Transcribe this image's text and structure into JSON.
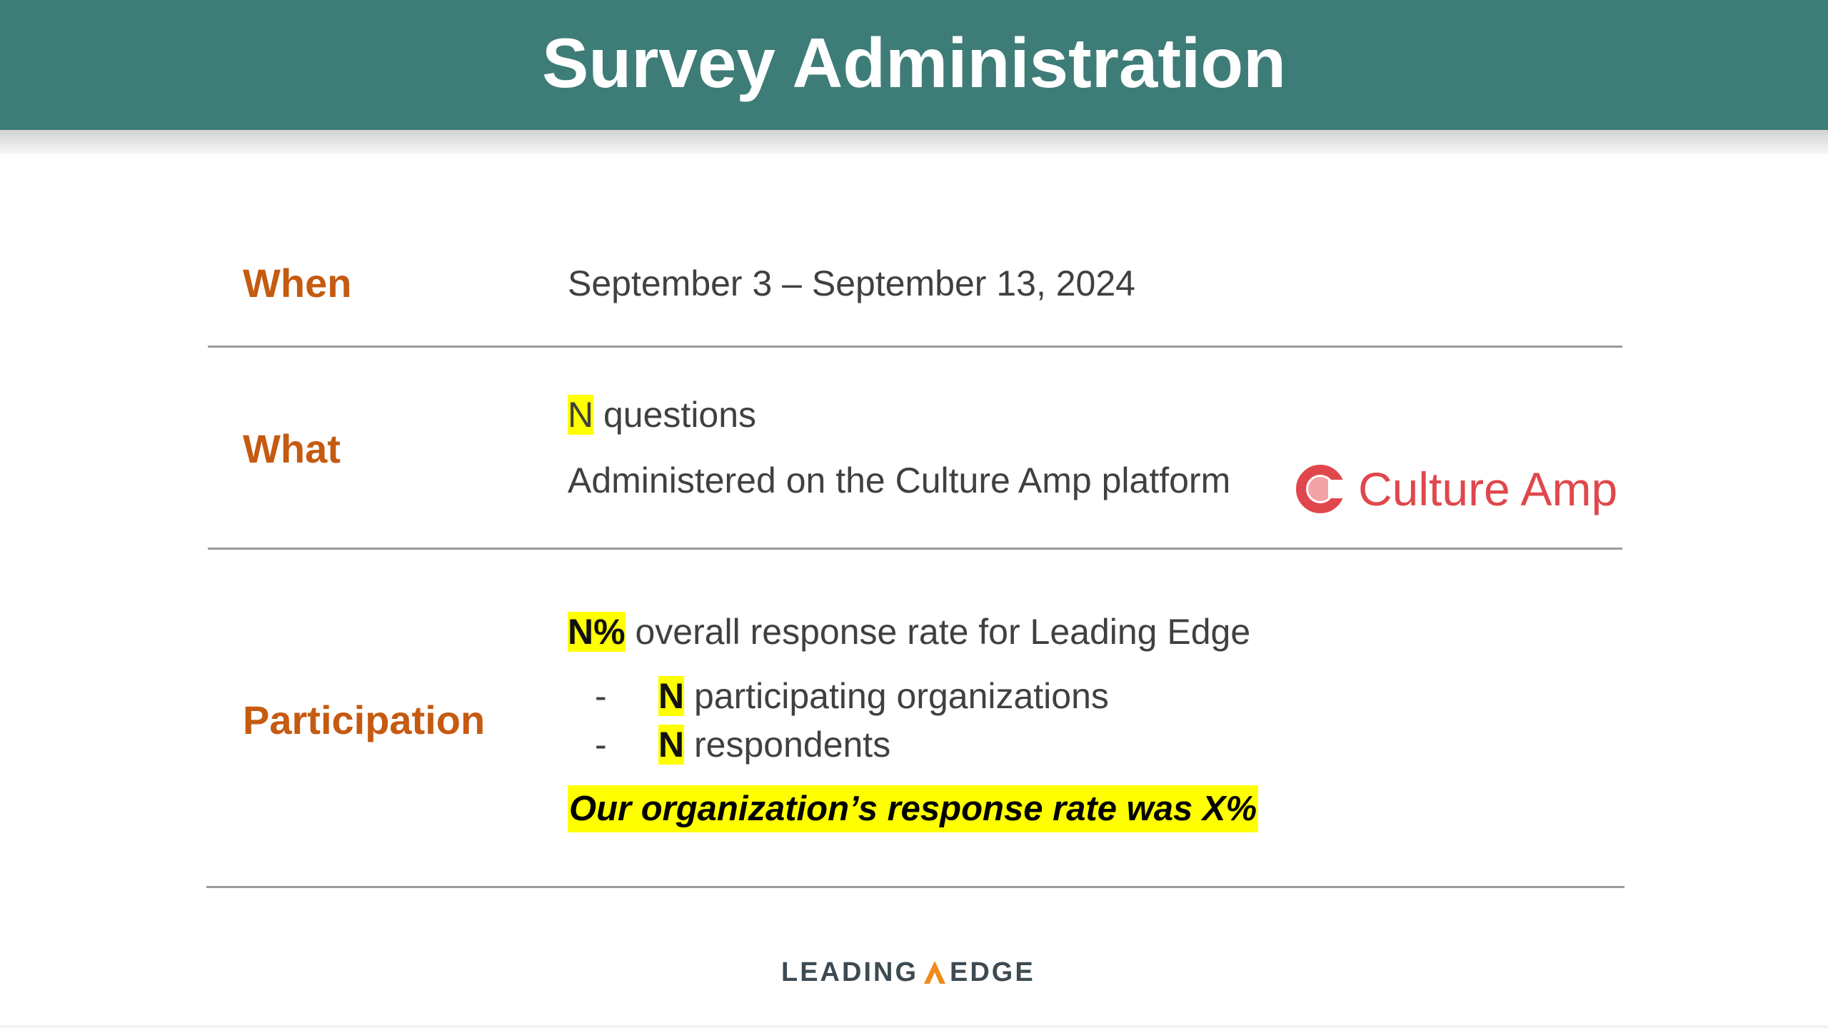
{
  "header": {
    "title": "Survey Administration"
  },
  "when": {
    "label": "When",
    "value": "September 3 – September 13, 2024"
  },
  "what": {
    "label": "What",
    "count_placeholder": "N",
    "questions_text": " questions",
    "platform_text": "Administered on the Culture Amp platform",
    "logo_text": "Culture Amp"
  },
  "participation": {
    "label": "Participation",
    "rate_placeholder": "N%",
    "rate_text": " overall response rate for Leading Edge",
    "bullets": [
      {
        "dash": "-",
        "placeholder": "N",
        "text": " participating organizations"
      },
      {
        "dash": "-",
        "placeholder": "N",
        "text": " respondents"
      }
    ],
    "callout": "Our organization’s response rate was X%"
  },
  "footer": {
    "logo_left": "LEADING",
    "logo_right": "EDGE"
  },
  "colors": {
    "header_bg": "#3e7c77",
    "label": "#c55a11",
    "highlight": "#ffff00",
    "culture_amp": "#e0474c"
  }
}
